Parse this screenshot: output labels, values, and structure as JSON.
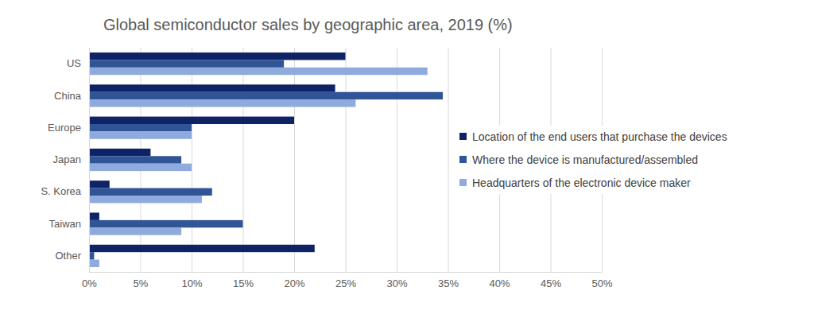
{
  "chart_data": {
    "type": "bar",
    "orientation": "horizontal",
    "title": "Global semiconductor sales by geographic area, 2019 (%)",
    "categories": [
      "US",
      "China",
      "Europe",
      "Japan",
      "S. Korea",
      "Taiwan",
      "Other"
    ],
    "series": [
      {
        "name": "Location of the end users that purchase the devices",
        "color": "#0e2366",
        "values": [
          25,
          24,
          20,
          6,
          2,
          1,
          22
        ]
      },
      {
        "name": "Where the device is manufactured/assembled",
        "color": "#2f5597",
        "values": [
          19,
          34.5,
          10,
          9,
          12,
          15,
          0.5
        ]
      },
      {
        "name": "Headquarters of the electronic device maker",
        "color": "#8faadc",
        "values": [
          33,
          26,
          10,
          10,
          11,
          9,
          1
        ]
      }
    ],
    "xlim": [
      0,
      50
    ],
    "xticks": [
      {
        "value": 0,
        "label": "0%"
      },
      {
        "value": 5,
        "label": "5%"
      },
      {
        "value": 10,
        "label": "10%"
      },
      {
        "value": 15,
        "label": "15%"
      },
      {
        "value": 20,
        "label": "20%"
      },
      {
        "value": 25,
        "label": "25%"
      },
      {
        "value": 30,
        "label": "30%"
      },
      {
        "value": 35,
        "label": "35%"
      },
      {
        "value": 40,
        "label": "40%"
      },
      {
        "value": 45,
        "label": "45%"
      },
      {
        "value": 50,
        "label": "50%"
      }
    ],
    "grid": true,
    "legend": "right"
  }
}
